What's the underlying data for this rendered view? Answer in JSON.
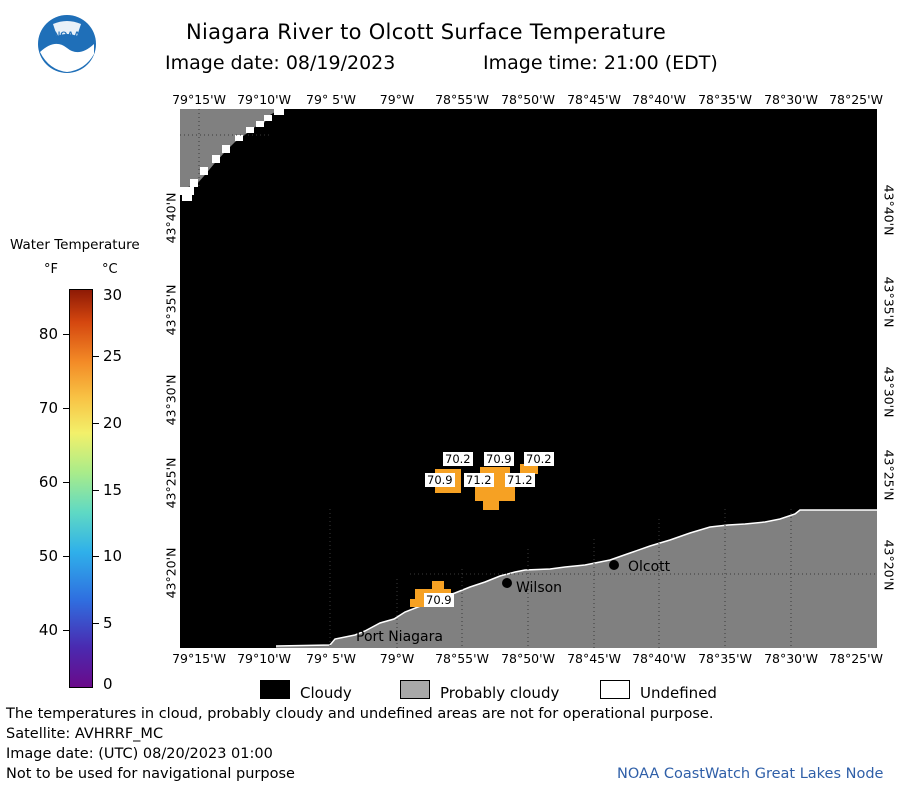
{
  "title": "Niagara River to Olcott Surface Temperature",
  "image_date": "Image date: 08/19/2023",
  "image_time": "Image time: 21:00 (EDT)",
  "logo": {
    "icon": "noaa-logo-icon",
    "text": "NOAA"
  },
  "longitude_labels": [
    "79°15'W",
    "79°10'W",
    "79° 5'W",
    "79°W",
    "78°55'W",
    "78°50'W",
    "78°45'W",
    "78°40'W",
    "78°35'W",
    "78°30'W",
    "78°25'W"
  ],
  "latitude_labels": [
    "43°40'N",
    "43°35'N",
    "43°30'N",
    "43°25'N",
    "43°20'N"
  ],
  "legend": {
    "title": "Water Temperature",
    "unit_f": "°F",
    "unit_c": "°C",
    "ticks_f": [
      "80",
      "70",
      "60",
      "50",
      "40"
    ],
    "ticks_c": [
      "30",
      "25",
      "20",
      "15",
      "10",
      "5",
      "0"
    ]
  },
  "places": [
    {
      "name": "Olcott",
      "lon": -78.716,
      "lat": 43.338
    },
    {
      "name": "Wilson",
      "lon": -78.826,
      "lat": 43.312
    },
    {
      "name": "Port Niagara",
      "lon": null,
      "lat": null
    }
  ],
  "temperature_labels": [
    {
      "value": "70.2",
      "lon": -78.94,
      "lat": 43.425
    },
    {
      "value": "70.9",
      "lon": -78.88,
      "lat": 43.425
    },
    {
      "value": "70.2",
      "lon": -78.815,
      "lat": 43.425
    },
    {
      "value": "70.9",
      "lon": -78.96,
      "lat": 43.41
    },
    {
      "value": "71.2",
      "lon": -78.905,
      "lat": 43.41
    },
    {
      "value": "71.2",
      "lon": -78.855,
      "lat": 43.41
    },
    {
      "value": "70.9",
      "lon": -78.97,
      "lat": 43.297
    }
  ],
  "cloud_legend": [
    "Cloudy",
    "Probably cloudy",
    "Undefined"
  ],
  "colors": {
    "cloudy": "#000000",
    "probably_cloudy": "#808080",
    "undefined": "#ffffff",
    "warm_water": "#f6a123",
    "credit": "#2f5fa8"
  },
  "footer": {
    "line1": "The temperatures in cloud, probably cloudy and undefined areas are not for operational purpose.",
    "line2": "Satellite: AVHRRF_MC",
    "line3": "Image date: (UTC) 08/20/2023  01:00",
    "line4": "Not to be used for navigational purpose",
    "credit": "NOAA CoastWatch Great Lakes Node"
  }
}
